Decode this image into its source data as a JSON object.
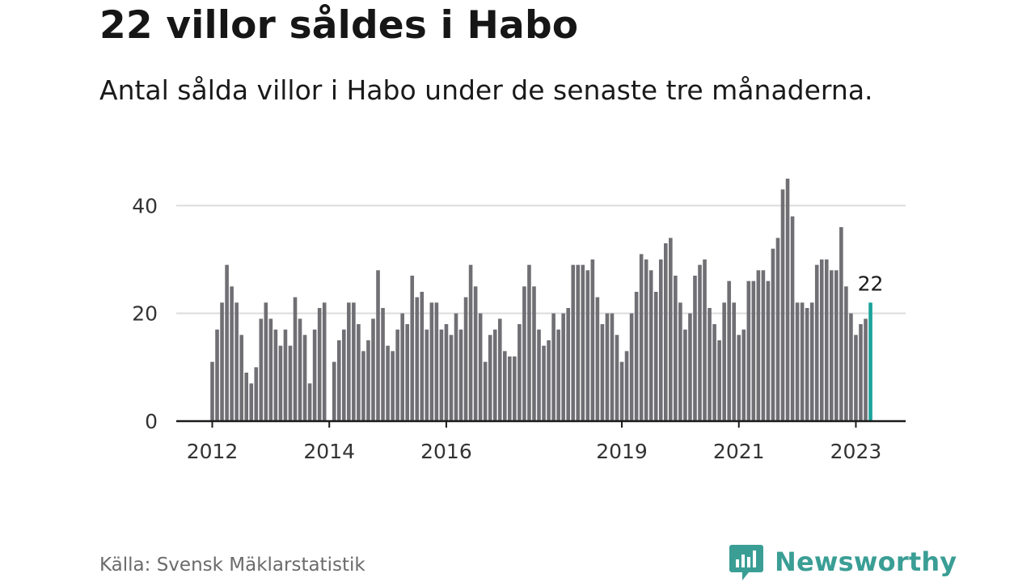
{
  "title": "22 villor såldes i Habo",
  "subtitle": "Antal sålda villor i Habo under de senaste tre månaderna.",
  "source": "Källa: Svensk Mäklarstatistik",
  "brand": {
    "name": "Newsworthy",
    "color": "#3a9e95"
  },
  "chart_data": {
    "type": "bar",
    "ylim": [
      0,
      45
    ],
    "yticks": [
      0,
      20,
      40
    ],
    "xticks": [
      {
        "label": "2012",
        "index": 0
      },
      {
        "label": "2014",
        "index": 24
      },
      {
        "label": "2016",
        "index": 48
      },
      {
        "label": "2019",
        "index": 84
      },
      {
        "label": "2021",
        "index": 108
      },
      {
        "label": "2023",
        "index": 132
      }
    ],
    "bar_color": "#706f74",
    "highlight_color": "#1aa39a",
    "highlight_label": "22",
    "values": [
      11,
      17,
      22,
      29,
      25,
      22,
      16,
      9,
      7,
      10,
      19,
      22,
      19,
      17,
      14,
      17,
      14,
      23,
      19,
      16,
      7,
      17,
      21,
      22,
      0,
      11,
      15,
      17,
      22,
      22,
      18,
      13,
      15,
      19,
      28,
      21,
      14,
      13,
      17,
      20,
      18,
      27,
      23,
      24,
      17,
      22,
      22,
      17,
      18,
      16,
      20,
      17,
      23,
      29,
      25,
      20,
      11,
      16,
      17,
      19,
      13,
      12,
      12,
      18,
      25,
      29,
      25,
      17,
      14,
      15,
      20,
      17,
      20,
      21,
      29,
      29,
      29,
      28,
      30,
      23,
      18,
      20,
      20,
      16,
      11,
      13,
      20,
      24,
      31,
      30,
      28,
      24,
      30,
      33,
      34,
      27,
      22,
      17,
      20,
      27,
      29,
      30,
      21,
      18,
      15,
      22,
      26,
      22,
      16,
      17,
      26,
      26,
      28,
      28,
      26,
      32,
      34,
      43,
      45,
      38,
      22,
      22,
      21,
      22,
      29,
      30,
      30,
      28,
      28,
      36,
      25,
      20,
      16,
      18,
      19,
      22
    ]
  }
}
